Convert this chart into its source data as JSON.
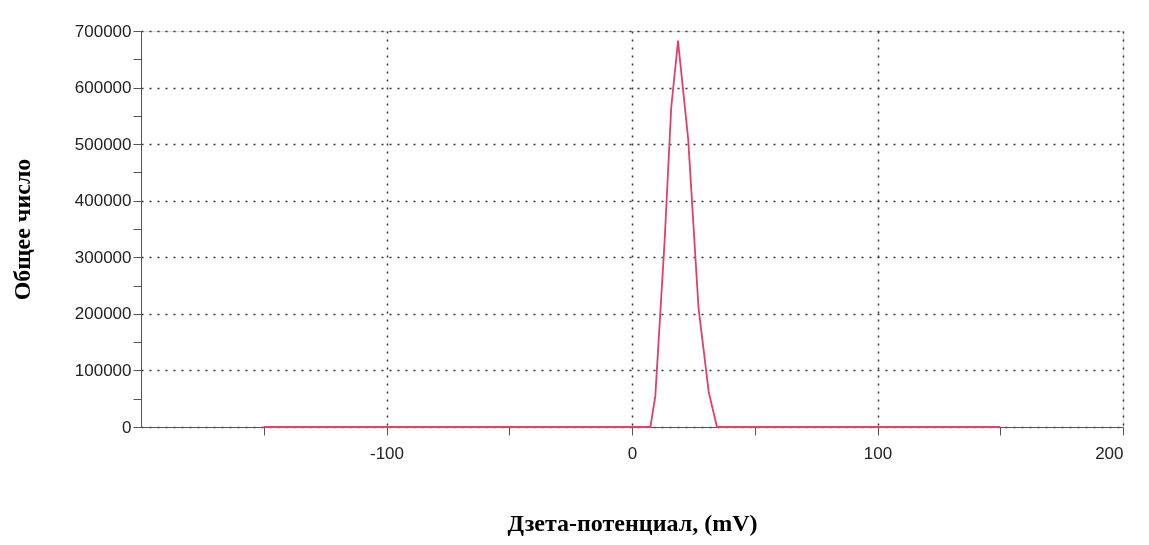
{
  "chart_data": {
    "type": "line",
    "xlabel": "Дзета-потенциал, (mV)",
    "ylabel": "Общее число",
    "xlim": [
      -200,
      200
    ],
    "xticks": [
      {
        "value": -150,
        "label": null
      },
      -100,
      {
        "value": -50,
        "label": null
      },
      0,
      {
        "value": 50,
        "label": null
      },
      100,
      {
        "value": 150,
        "label": null
      },
      200
    ],
    "ylim": [
      0,
      700000
    ],
    "yticks": [
      0,
      {
        "value": 50000,
        "label": null
      },
      100000,
      {
        "value": 150000,
        "label": null
      },
      200000,
      {
        "value": 250000,
        "label": null
      },
      300000,
      {
        "value": 350000,
        "label": null
      },
      400000,
      {
        "value": 450000,
        "label": null
      },
      500000,
      {
        "value": 550000,
        "label": null
      },
      600000,
      {
        "value": 650000,
        "label": null
      },
      700000
    ],
    "grid": true,
    "marker": "none",
    "line_style": "solid",
    "series": [
      {
        "color": "#e0406a",
        "x": [
          -150,
          7.5,
          9.5,
          13.3,
          16,
          18.75,
          22.9,
          27.1,
          31.25,
          34.6,
          150
        ],
        "values": [
          0,
          0,
          55000,
          330000,
          566000,
          682000,
          508000,
          210000,
          62000,
          0,
          0
        ]
      }
    ]
  }
}
